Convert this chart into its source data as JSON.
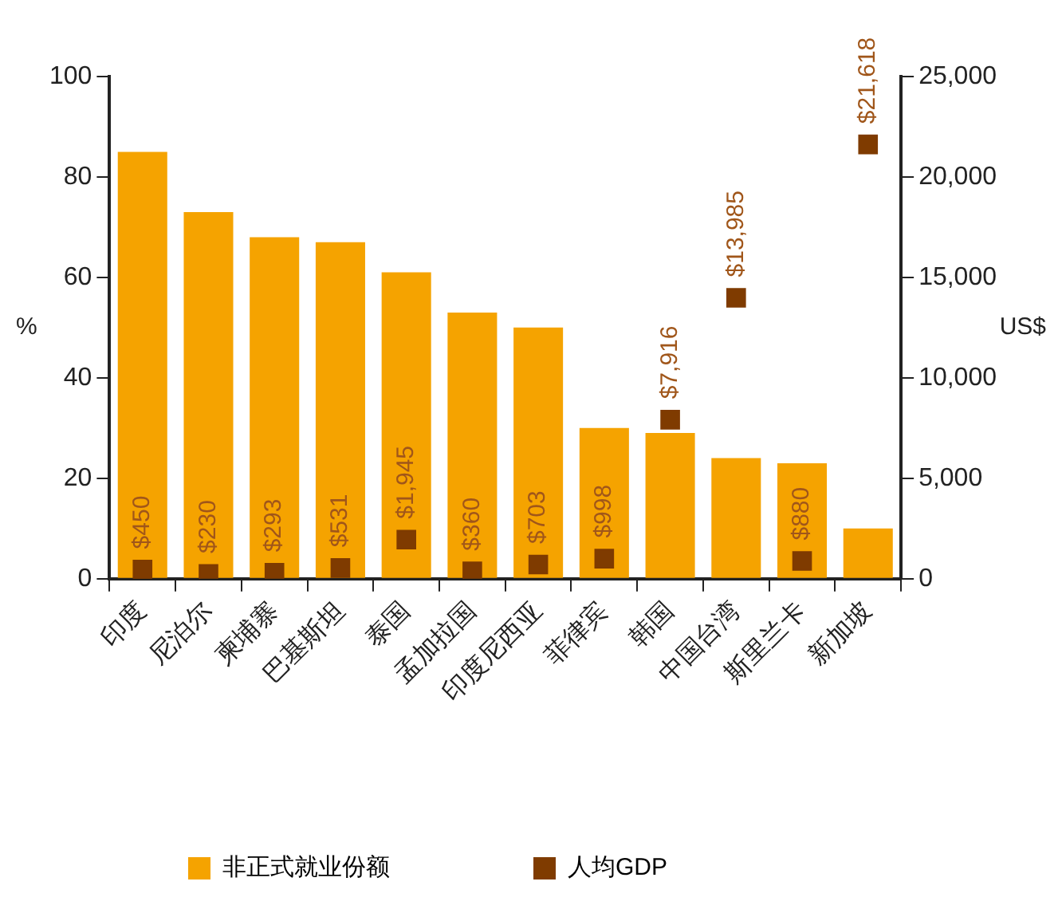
{
  "chart_data": {
    "type": "bar",
    "categories": [
      "印度",
      "尼泊尔",
      "柬埔寨",
      "巴基斯坦",
      "泰国",
      "孟加拉国",
      "印度尼西亚",
      "菲律宾",
      "韩国",
      "中国台湾",
      "斯里兰卡",
      "新加坡"
    ],
    "series": [
      {
        "name": "非正式就业份额",
        "color": "#f5a300",
        "values": [
          85,
          73,
          68,
          67,
          61,
          53,
          50,
          30,
          29,
          24,
          23,
          10
        ]
      },
      {
        "name": "人均GDP",
        "type": "scatter",
        "axis": "y2",
        "color": "#7f3b00",
        "values": [
          450,
          230,
          293,
          531,
          1945,
          360,
          703,
          998,
          7916,
          13985,
          880,
          21618
        ],
        "value_labels": [
          "$450",
          "$230",
          "$293",
          "$531",
          "$1,945",
          "$360",
          "$703",
          "$998",
          "$7,916",
          "$13,985",
          "$880",
          "$21,618"
        ]
      }
    ],
    "ylabel": "%",
    "y2label": "US$",
    "ylim": [
      0,
      100
    ],
    "yticks": [
      0,
      20,
      40,
      60,
      80,
      100
    ],
    "y2lim": [
      0,
      25000
    ],
    "y2ticks": [
      0,
      {
        "value": 5000,
        "label": "5,000"
      },
      {
        "value": 10000,
        "label": "10,000"
      },
      {
        "value": 15000,
        "label": "15,000"
      },
      {
        "value": 20000,
        "label": "20,000"
      },
      {
        "value": 25000,
        "label": "25,000"
      }
    ],
    "grid": false,
    "legend": "bottom",
    "marker": "square"
  }
}
